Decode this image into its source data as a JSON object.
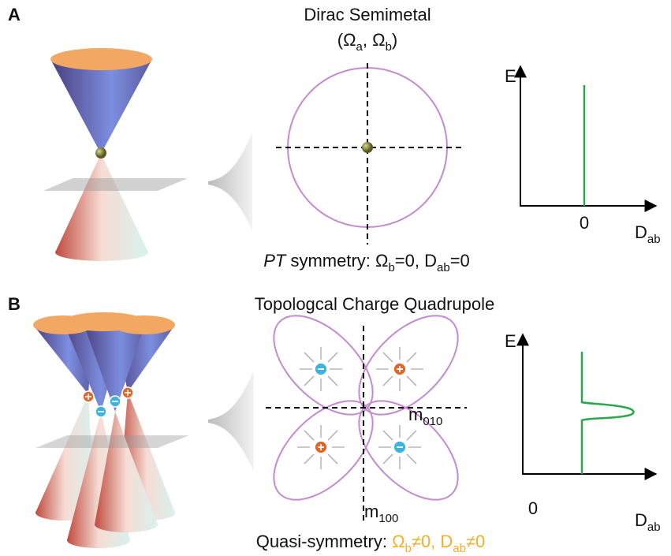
{
  "panel_a": {
    "label": "A",
    "title": "Dirac Semimetal",
    "subtitle": [
      "(",
      {
        "base": "Ω",
        "sub": "a"
      },
      ", ",
      {
        "base": "Ω",
        "sub": "b"
      },
      ")"
    ],
    "plot": {
      "y_label": "E",
      "x_label": {
        "base": "D",
        "sub": "ab"
      },
      "x_zero": "0"
    },
    "caption": [
      {
        "italic": "PT"
      },
      " symmetry: ",
      {
        "base": "Ω",
        "sub": "b"
      },
      "=0, ",
      {
        "base": "D",
        "sub": "ab"
      },
      "=0"
    ]
  },
  "panel_b": {
    "label": "B",
    "title": "Topologcal Charge Quadrupole",
    "mirror_h": {
      "base": "m",
      "sub": "010"
    },
    "mirror_v": {
      "base": "m",
      "sub": "100"
    },
    "plot": {
      "y_label": "E",
      "x_label": {
        "base": "D",
        "sub": "ab"
      },
      "x_zero": "0"
    },
    "caption": [
      "Quasi-symmetry: ",
      {
        "base": "Ω",
        "sub": "b"
      },
      "≠0, ",
      {
        "base": "D",
        "sub": "ab"
      },
      "≠0"
    ]
  }
}
